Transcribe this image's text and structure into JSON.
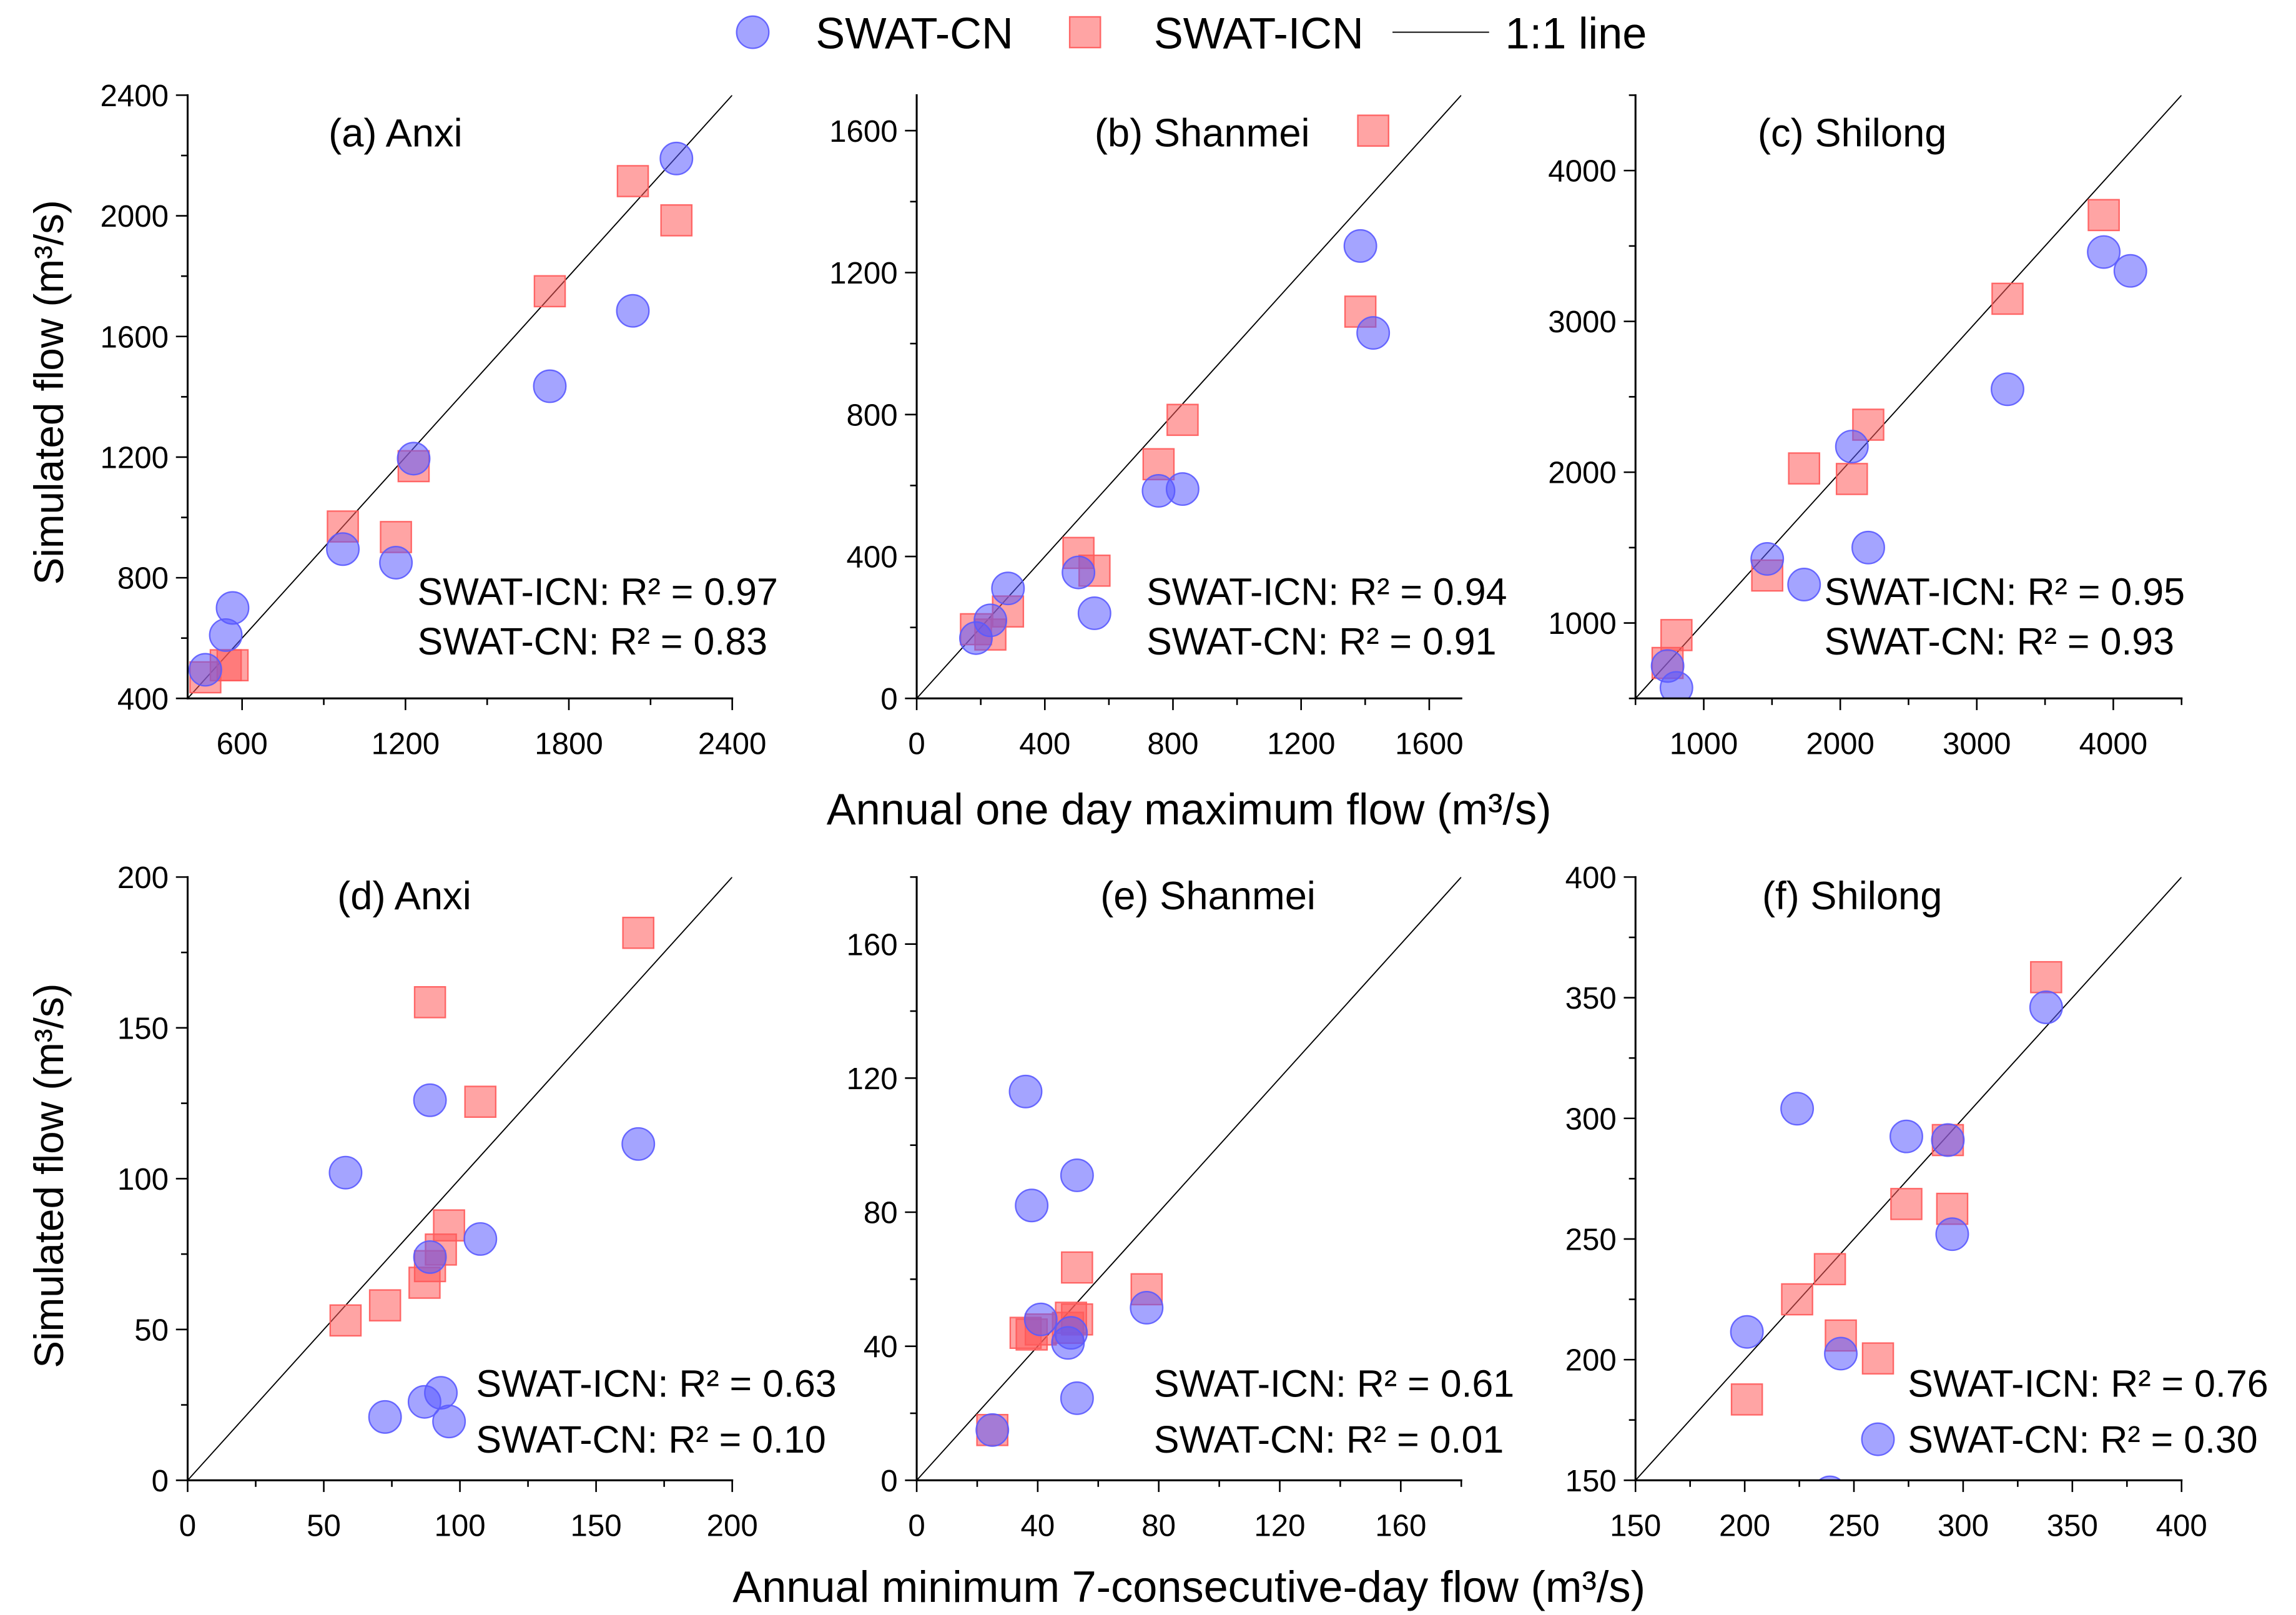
{
  "legend": {
    "items": [
      {
        "label": "SWAT-CN",
        "color": "#5a5aff"
      },
      {
        "label": "SWAT-ICN",
        "color": "#ff5a5a"
      },
      {
        "label": "1:1 line",
        "color": "#000000"
      }
    ]
  },
  "axis_labels": {
    "y_top": "Simulated flow (m³/s)",
    "y_bottom": "Simulated flow (m³/s)",
    "x_top": "Annual one day maximum flow (m³/s)",
    "x_bottom": "Annual minimum 7-consecutive-day flow (m³/s)"
  },
  "chart_data": [
    {
      "type": "scatter",
      "title": "(a) Anxi",
      "xlim": [
        400,
        2400
      ],
      "ylim": [
        400,
        2400
      ],
      "xticks": [
        600,
        1200,
        1800,
        2400
      ],
      "yticks": [
        400,
        800,
        1200,
        1600,
        2000,
        2400
      ],
      "series": [
        {
          "name": "SWAT-CN",
          "points": [
            [
              2195,
              2190
            ],
            [
              2035,
              1685
            ],
            [
              1730,
              1435
            ],
            [
              1230,
              1195
            ],
            [
              970,
              895
            ],
            [
              1165,
              850
            ],
            [
              565,
              700
            ],
            [
              540,
              610
            ],
            [
              465,
              495
            ]
          ]
        },
        {
          "name": "SWAT-ICN",
          "points": [
            [
              2035,
              2115
            ],
            [
              2195,
              1985
            ],
            [
              1730,
              1750
            ],
            [
              1230,
              1170
            ],
            [
              970,
              970
            ],
            [
              1165,
              935
            ],
            [
              565,
              510
            ],
            [
              540,
              510
            ],
            [
              465,
              470
            ]
          ]
        }
      ],
      "annotations": [
        "SWAT-ICN: R² = 0.97",
        "SWAT-CN: R² = 0.83"
      ]
    },
    {
      "type": "scatter",
      "title": "(b) Shanmei",
      "xlim": [
        0,
        1700
      ],
      "ylim": [
        0,
        1700
      ],
      "xticks": [
        0,
        400,
        800,
        1200,
        1600
      ],
      "yticks": [
        0,
        400,
        800,
        1200,
        1600
      ],
      "series": [
        {
          "name": "SWAT-CN",
          "points": [
            [
              1385,
              1275
            ],
            [
              1425,
              1030
            ],
            [
              755,
              585
            ],
            [
              830,
              590
            ],
            [
              505,
              355
            ],
            [
              555,
              240
            ],
            [
              285,
              310
            ],
            [
              230,
              220
            ],
            [
              185,
              170
            ]
          ]
        },
        {
          "name": "SWAT-ICN",
          "points": [
            [
              1425,
              1600
            ],
            [
              1385,
              1090
            ],
            [
              830,
              785
            ],
            [
              755,
              660
            ],
            [
              505,
              410
            ],
            [
              555,
              360
            ],
            [
              285,
              245
            ],
            [
              230,
              180
            ],
            [
              185,
              195
            ]
          ]
        }
      ],
      "annotations": [
        "SWAT-ICN: R² = 0.94",
        "SWAT-CN: R² = 0.91"
      ]
    },
    {
      "type": "scatter",
      "title": "(c) Shilong",
      "xlim": [
        500,
        4500
      ],
      "ylim": [
        500,
        4500
      ],
      "xticks": [
        1000,
        2000,
        3000,
        4000
      ],
      "yticks": [
        1000,
        2000,
        3000,
        4000
      ],
      "series": [
        {
          "name": "SWAT-CN",
          "points": [
            [
              3930,
              3460
            ],
            [
              4125,
              3335
            ],
            [
              3225,
              2550
            ],
            [
              2085,
              2170
            ],
            [
              2205,
              1500
            ],
            [
              1465,
              1425
            ],
            [
              1735,
              1255
            ],
            [
              735,
              715
            ],
            [
              800,
              570
            ]
          ]
        },
        {
          "name": "SWAT-ICN",
          "points": [
            [
              3930,
              3705
            ],
            [
              3225,
              3150
            ],
            [
              2205,
              2315
            ],
            [
              1735,
              2025
            ],
            [
              2085,
              1955
            ],
            [
              1465,
              1315
            ],
            [
              800,
              920
            ],
            [
              735,
              735
            ]
          ]
        }
      ],
      "annotations": [
        "SWAT-ICN: R² = 0.95",
        "SWAT-CN: R² = 0.93"
      ]
    },
    {
      "type": "scatter",
      "title": "(d) Anxi",
      "xlim": [
        0,
        200
      ],
      "ylim": [
        0,
        200
      ],
      "xticks": [
        0,
        50,
        100,
        150,
        200
      ],
      "yticks": [
        0,
        50,
        100,
        150,
        200
      ],
      "series": [
        {
          "name": "SWAT-CN",
          "points": [
            [
              165.5,
              111.5
            ],
            [
              89,
              126
            ],
            [
              58,
              102
            ],
            [
              107.5,
              80
            ],
            [
              89,
              74
            ],
            [
              93,
              29
            ],
            [
              87,
              26
            ],
            [
              72.5,
              21
            ],
            [
              96,
              19.5
            ]
          ]
        },
        {
          "name": "SWAT-ICN",
          "points": [
            [
              165.5,
              181.5
            ],
            [
              89,
              158.5
            ],
            [
              107.5,
              125.5
            ],
            [
              96,
              84.5
            ],
            [
              93,
              76.5
            ],
            [
              89,
              71
            ],
            [
              87,
              65.5
            ],
            [
              72.5,
              58
            ],
            [
              58,
              53
            ]
          ]
        }
      ],
      "annotations": [
        "SWAT-ICN: R² = 0.63",
        "SWAT-CN: R² = 0.10"
      ]
    },
    {
      "type": "scatter",
      "title": "(e) Shanmei",
      "xlim": [
        0,
        180
      ],
      "ylim": [
        0,
        180
      ],
      "xticks": [
        0,
        40,
        80,
        120,
        160
      ],
      "yticks": [
        0,
        40,
        80,
        120,
        160
      ],
      "series": [
        {
          "name": "SWAT-CN",
          "points": [
            [
              36,
              116
            ],
            [
              53,
              91
            ],
            [
              38,
              82
            ],
            [
              76,
              51.5
            ],
            [
              41,
              48
            ],
            [
              50,
              41
            ],
            [
              51,
              44
            ],
            [
              53,
              24.5
            ],
            [
              25,
              15
            ]
          ]
        },
        {
          "name": "SWAT-ICN",
          "points": [
            [
              76,
              57
            ],
            [
              53,
              63.5
            ],
            [
              51,
              48.5
            ],
            [
              50,
              45.5
            ],
            [
              41,
              45
            ],
            [
              38,
              43.5
            ],
            [
              36,
              44
            ],
            [
              53,
              48
            ],
            [
              25,
              15
            ]
          ]
        }
      ],
      "annotations": [
        "SWAT-ICN: R² = 0.61",
        "SWAT-CN: R² = 0.01"
      ]
    },
    {
      "type": "scatter",
      "title": "(f) Shilong",
      "xlim": [
        150,
        400
      ],
      "ylim": [
        150,
        400
      ],
      "xticks": [
        150,
        200,
        250,
        300,
        350,
        400
      ],
      "yticks": [
        150,
        200,
        250,
        300,
        350,
        400
      ],
      "series": [
        {
          "name": "SWAT-CN",
          "points": [
            [
              338,
              346
            ],
            [
              224,
              304
            ],
            [
              274,
              292.5
            ],
            [
              293,
              291
            ],
            [
              295,
              252
            ],
            [
              201,
              211.5
            ],
            [
              244,
              202.5
            ],
            [
              261,
              167
            ],
            [
              239,
              145
            ]
          ]
        },
        {
          "name": "SWAT-ICN",
          "points": [
            [
              338,
              358.5
            ],
            [
              293,
              291
            ],
            [
              295,
              262.5
            ],
            [
              274,
              264.5
            ],
            [
              239,
              237.5
            ],
            [
              224,
              225
            ],
            [
              244,
              210
            ],
            [
              261,
              200.5
            ],
            [
              201,
              183.5
            ]
          ]
        }
      ],
      "annotations": [
        "SWAT-ICN: R² = 0.76",
        "SWAT-CN: R² = 0.30"
      ]
    }
  ]
}
